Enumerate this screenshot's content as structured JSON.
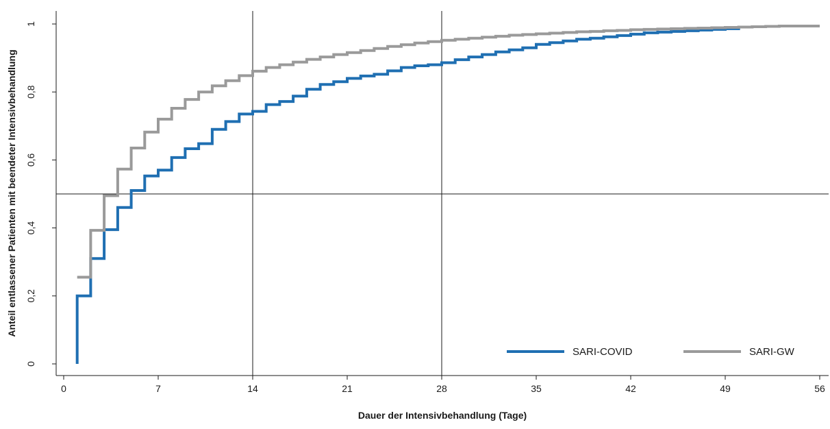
{
  "chart_data": {
    "type": "line",
    "xlabel": "Dauer der Intensivbehandlung (Tage)",
    "ylabel": "Anteil entlassener Patienten mit beendeter Intensivbehandlung",
    "xlim": [
      0,
      56
    ],
    "ylim": [
      0,
      1
    ],
    "xticks": [
      0,
      7,
      14,
      21,
      28,
      35,
      42,
      49,
      56
    ],
    "xtick_labels": [
      "0",
      "7",
      "14",
      "21",
      "28",
      "35",
      "42",
      "49",
      "56"
    ],
    "yticks": [
      0,
      0.2,
      0.4,
      0.6,
      0.8,
      1
    ],
    "ytick_labels": [
      "0",
      "0,2",
      "0,4",
      "0,6",
      "0,8",
      "1"
    ],
    "reference_lines": {
      "horizontal": [
        0.5
      ],
      "vertical": [
        14,
        28
      ]
    },
    "legend_position": "bottom-right",
    "series": [
      {
        "name": "SARI-COVID",
        "color": "#1f6fb2",
        "step": true,
        "points": [
          [
            1,
            0
          ],
          [
            1,
            0.2
          ],
          [
            2,
            0.2
          ],
          [
            2,
            0.31
          ],
          [
            3,
            0.31
          ],
          [
            3,
            0.395
          ],
          [
            4,
            0.395
          ],
          [
            4,
            0.46
          ],
          [
            5,
            0.46
          ],
          [
            5,
            0.51
          ],
          [
            6,
            0.51
          ],
          [
            6,
            0.553
          ],
          [
            7,
            0.553
          ],
          [
            7,
            0.57
          ],
          [
            8,
            0.57
          ],
          [
            8,
            0.607
          ],
          [
            9,
            0.607
          ],
          [
            9,
            0.633
          ],
          [
            10,
            0.633
          ],
          [
            10,
            0.648
          ],
          [
            11,
            0.648
          ],
          [
            11,
            0.69
          ],
          [
            12,
            0.69
          ],
          [
            12,
            0.713
          ],
          [
            13,
            0.713
          ],
          [
            13,
            0.735
          ],
          [
            14,
            0.735
          ],
          [
            14,
            0.743
          ],
          [
            15,
            0.743
          ],
          [
            15,
            0.763
          ],
          [
            16,
            0.763
          ],
          [
            16,
            0.772
          ],
          [
            17,
            0.772
          ],
          [
            17,
            0.788
          ],
          [
            18,
            0.788
          ],
          [
            18,
            0.808
          ],
          [
            19,
            0.808
          ],
          [
            19,
            0.822
          ],
          [
            20,
            0.822
          ],
          [
            20,
            0.83
          ],
          [
            21,
            0.83
          ],
          [
            21,
            0.84
          ],
          [
            22,
            0.84
          ],
          [
            22,
            0.847
          ],
          [
            23,
            0.847
          ],
          [
            23,
            0.852
          ],
          [
            24,
            0.852
          ],
          [
            24,
            0.862
          ],
          [
            25,
            0.862
          ],
          [
            25,
            0.872
          ],
          [
            26,
            0.872
          ],
          [
            26,
            0.877
          ],
          [
            27,
            0.877
          ],
          [
            27,
            0.88
          ],
          [
            28,
            0.88
          ],
          [
            28,
            0.886
          ],
          [
            29,
            0.886
          ],
          [
            29,
            0.895
          ],
          [
            30,
            0.895
          ],
          [
            30,
            0.903
          ],
          [
            31,
            0.903
          ],
          [
            31,
            0.91
          ],
          [
            32,
            0.91
          ],
          [
            32,
            0.918
          ],
          [
            33,
            0.918
          ],
          [
            33,
            0.924
          ],
          [
            34,
            0.924
          ],
          [
            34,
            0.93
          ],
          [
            35,
            0.93
          ],
          [
            35,
            0.94
          ],
          [
            36,
            0.94
          ],
          [
            36,
            0.945
          ],
          [
            37,
            0.945
          ],
          [
            37,
            0.95
          ],
          [
            38,
            0.95
          ],
          [
            38,
            0.955
          ],
          [
            39,
            0.955
          ],
          [
            39,
            0.958
          ],
          [
            40,
            0.958
          ],
          [
            40,
            0.962
          ],
          [
            41,
            0.962
          ],
          [
            41,
            0.966
          ],
          [
            42,
            0.966
          ],
          [
            42,
            0.97
          ],
          [
            43,
            0.97
          ],
          [
            43,
            0.974
          ],
          [
            44,
            0.974
          ],
          [
            44,
            0.976
          ],
          [
            45,
            0.976
          ],
          [
            45,
            0.978
          ],
          [
            46,
            0.978
          ],
          [
            46,
            0.98
          ],
          [
            47,
            0.98
          ],
          [
            47,
            0.982
          ],
          [
            48,
            0.982
          ],
          [
            48,
            0.984
          ],
          [
            49,
            0.984
          ],
          [
            49,
            0.986
          ],
          [
            50,
            0.986
          ],
          [
            50,
            0.988
          ]
        ]
      },
      {
        "name": "SARI-GW",
        "color": "#9a9a9a",
        "step": true,
        "points": [
          [
            1,
            0.255
          ],
          [
            2,
            0.255
          ],
          [
            2,
            0.393
          ],
          [
            3,
            0.393
          ],
          [
            3,
            0.495
          ],
          [
            4,
            0.495
          ],
          [
            4,
            0.573
          ],
          [
            5,
            0.573
          ],
          [
            5,
            0.635
          ],
          [
            6,
            0.635
          ],
          [
            6,
            0.682
          ],
          [
            7,
            0.682
          ],
          [
            7,
            0.72
          ],
          [
            8,
            0.72
          ],
          [
            8,
            0.752
          ],
          [
            9,
            0.752
          ],
          [
            9,
            0.778
          ],
          [
            10,
            0.778
          ],
          [
            10,
            0.8
          ],
          [
            11,
            0.8
          ],
          [
            11,
            0.818
          ],
          [
            12,
            0.818
          ],
          [
            12,
            0.833
          ],
          [
            13,
            0.833
          ],
          [
            13,
            0.848
          ],
          [
            14,
            0.848
          ],
          [
            14,
            0.861
          ],
          [
            15,
            0.861
          ],
          [
            15,
            0.872
          ],
          [
            16,
            0.872
          ],
          [
            16,
            0.88
          ],
          [
            17,
            0.88
          ],
          [
            17,
            0.888
          ],
          [
            18,
            0.888
          ],
          [
            18,
            0.896
          ],
          [
            19,
            0.896
          ],
          [
            19,
            0.903
          ],
          [
            20,
            0.903
          ],
          [
            20,
            0.91
          ],
          [
            21,
            0.91
          ],
          [
            21,
            0.916
          ],
          [
            22,
            0.916
          ],
          [
            22,
            0.922
          ],
          [
            23,
            0.922
          ],
          [
            23,
            0.928
          ],
          [
            24,
            0.928
          ],
          [
            24,
            0.934
          ],
          [
            25,
            0.934
          ],
          [
            25,
            0.939
          ],
          [
            26,
            0.939
          ],
          [
            26,
            0.944
          ],
          [
            27,
            0.944
          ],
          [
            27,
            0.948
          ],
          [
            28,
            0.948
          ],
          [
            28,
            0.952
          ],
          [
            29,
            0.952
          ],
          [
            29,
            0.955
          ],
          [
            30,
            0.955
          ],
          [
            30,
            0.958
          ],
          [
            31,
            0.958
          ],
          [
            31,
            0.961
          ],
          [
            32,
            0.961
          ],
          [
            32,
            0.964
          ],
          [
            33,
            0.964
          ],
          [
            33,
            0.967
          ],
          [
            34,
            0.967
          ],
          [
            34,
            0.969
          ],
          [
            35,
            0.969
          ],
          [
            35,
            0.971
          ],
          [
            36,
            0.971
          ],
          [
            36,
            0.973
          ],
          [
            37,
            0.973
          ],
          [
            37,
            0.975
          ],
          [
            38,
            0.975
          ],
          [
            38,
            0.977
          ],
          [
            39,
            0.977
          ],
          [
            39,
            0.978
          ],
          [
            40,
            0.978
          ],
          [
            40,
            0.98
          ],
          [
            41,
            0.98
          ],
          [
            41,
            0.981
          ],
          [
            42,
            0.981
          ],
          [
            42,
            0.983
          ],
          [
            43,
            0.983
          ],
          [
            43,
            0.984
          ],
          [
            44,
            0.984
          ],
          [
            44,
            0.985
          ],
          [
            45,
            0.985
          ],
          [
            45,
            0.986
          ],
          [
            46,
            0.986
          ],
          [
            46,
            0.987
          ],
          [
            47,
            0.987
          ],
          [
            47,
            0.988
          ],
          [
            48,
            0.988
          ],
          [
            48,
            0.989
          ],
          [
            49,
            0.989
          ],
          [
            49,
            0.99
          ],
          [
            50,
            0.99
          ],
          [
            50,
            0.991
          ],
          [
            51,
            0.991
          ],
          [
            51,
            0.992
          ],
          [
            52,
            0.992
          ],
          [
            52,
            0.993
          ],
          [
            53,
            0.993
          ],
          [
            53,
            0.994
          ],
          [
            56,
            0.994
          ]
        ]
      }
    ]
  }
}
